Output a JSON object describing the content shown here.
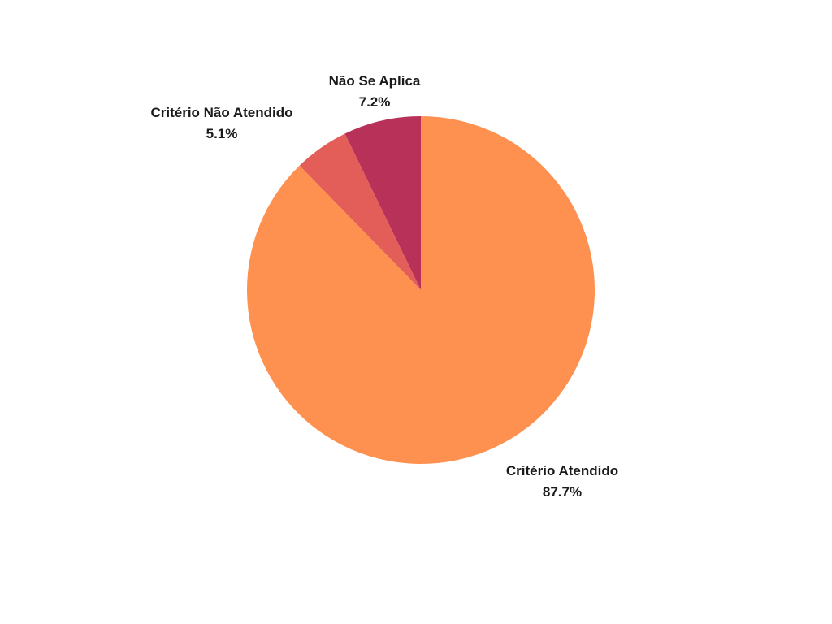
{
  "chart_data": {
    "type": "pie",
    "title": "",
    "slices": [
      {
        "label": "Não Se Aplica",
        "value": 7.2,
        "percent_text": "7.2%",
        "color": "#B83159"
      },
      {
        "label": "Critério Não Atendido",
        "value": 5.1,
        "percent_text": "5.1%",
        "color": "#E35E58"
      },
      {
        "label": "Critério Atendido",
        "value": 87.7,
        "percent_text": "87.7%",
        "color": "#FE914F"
      }
    ],
    "start_angle": "12 o'clock",
    "direction": "counterclockwise",
    "labels_outside": true,
    "legend": "none"
  }
}
